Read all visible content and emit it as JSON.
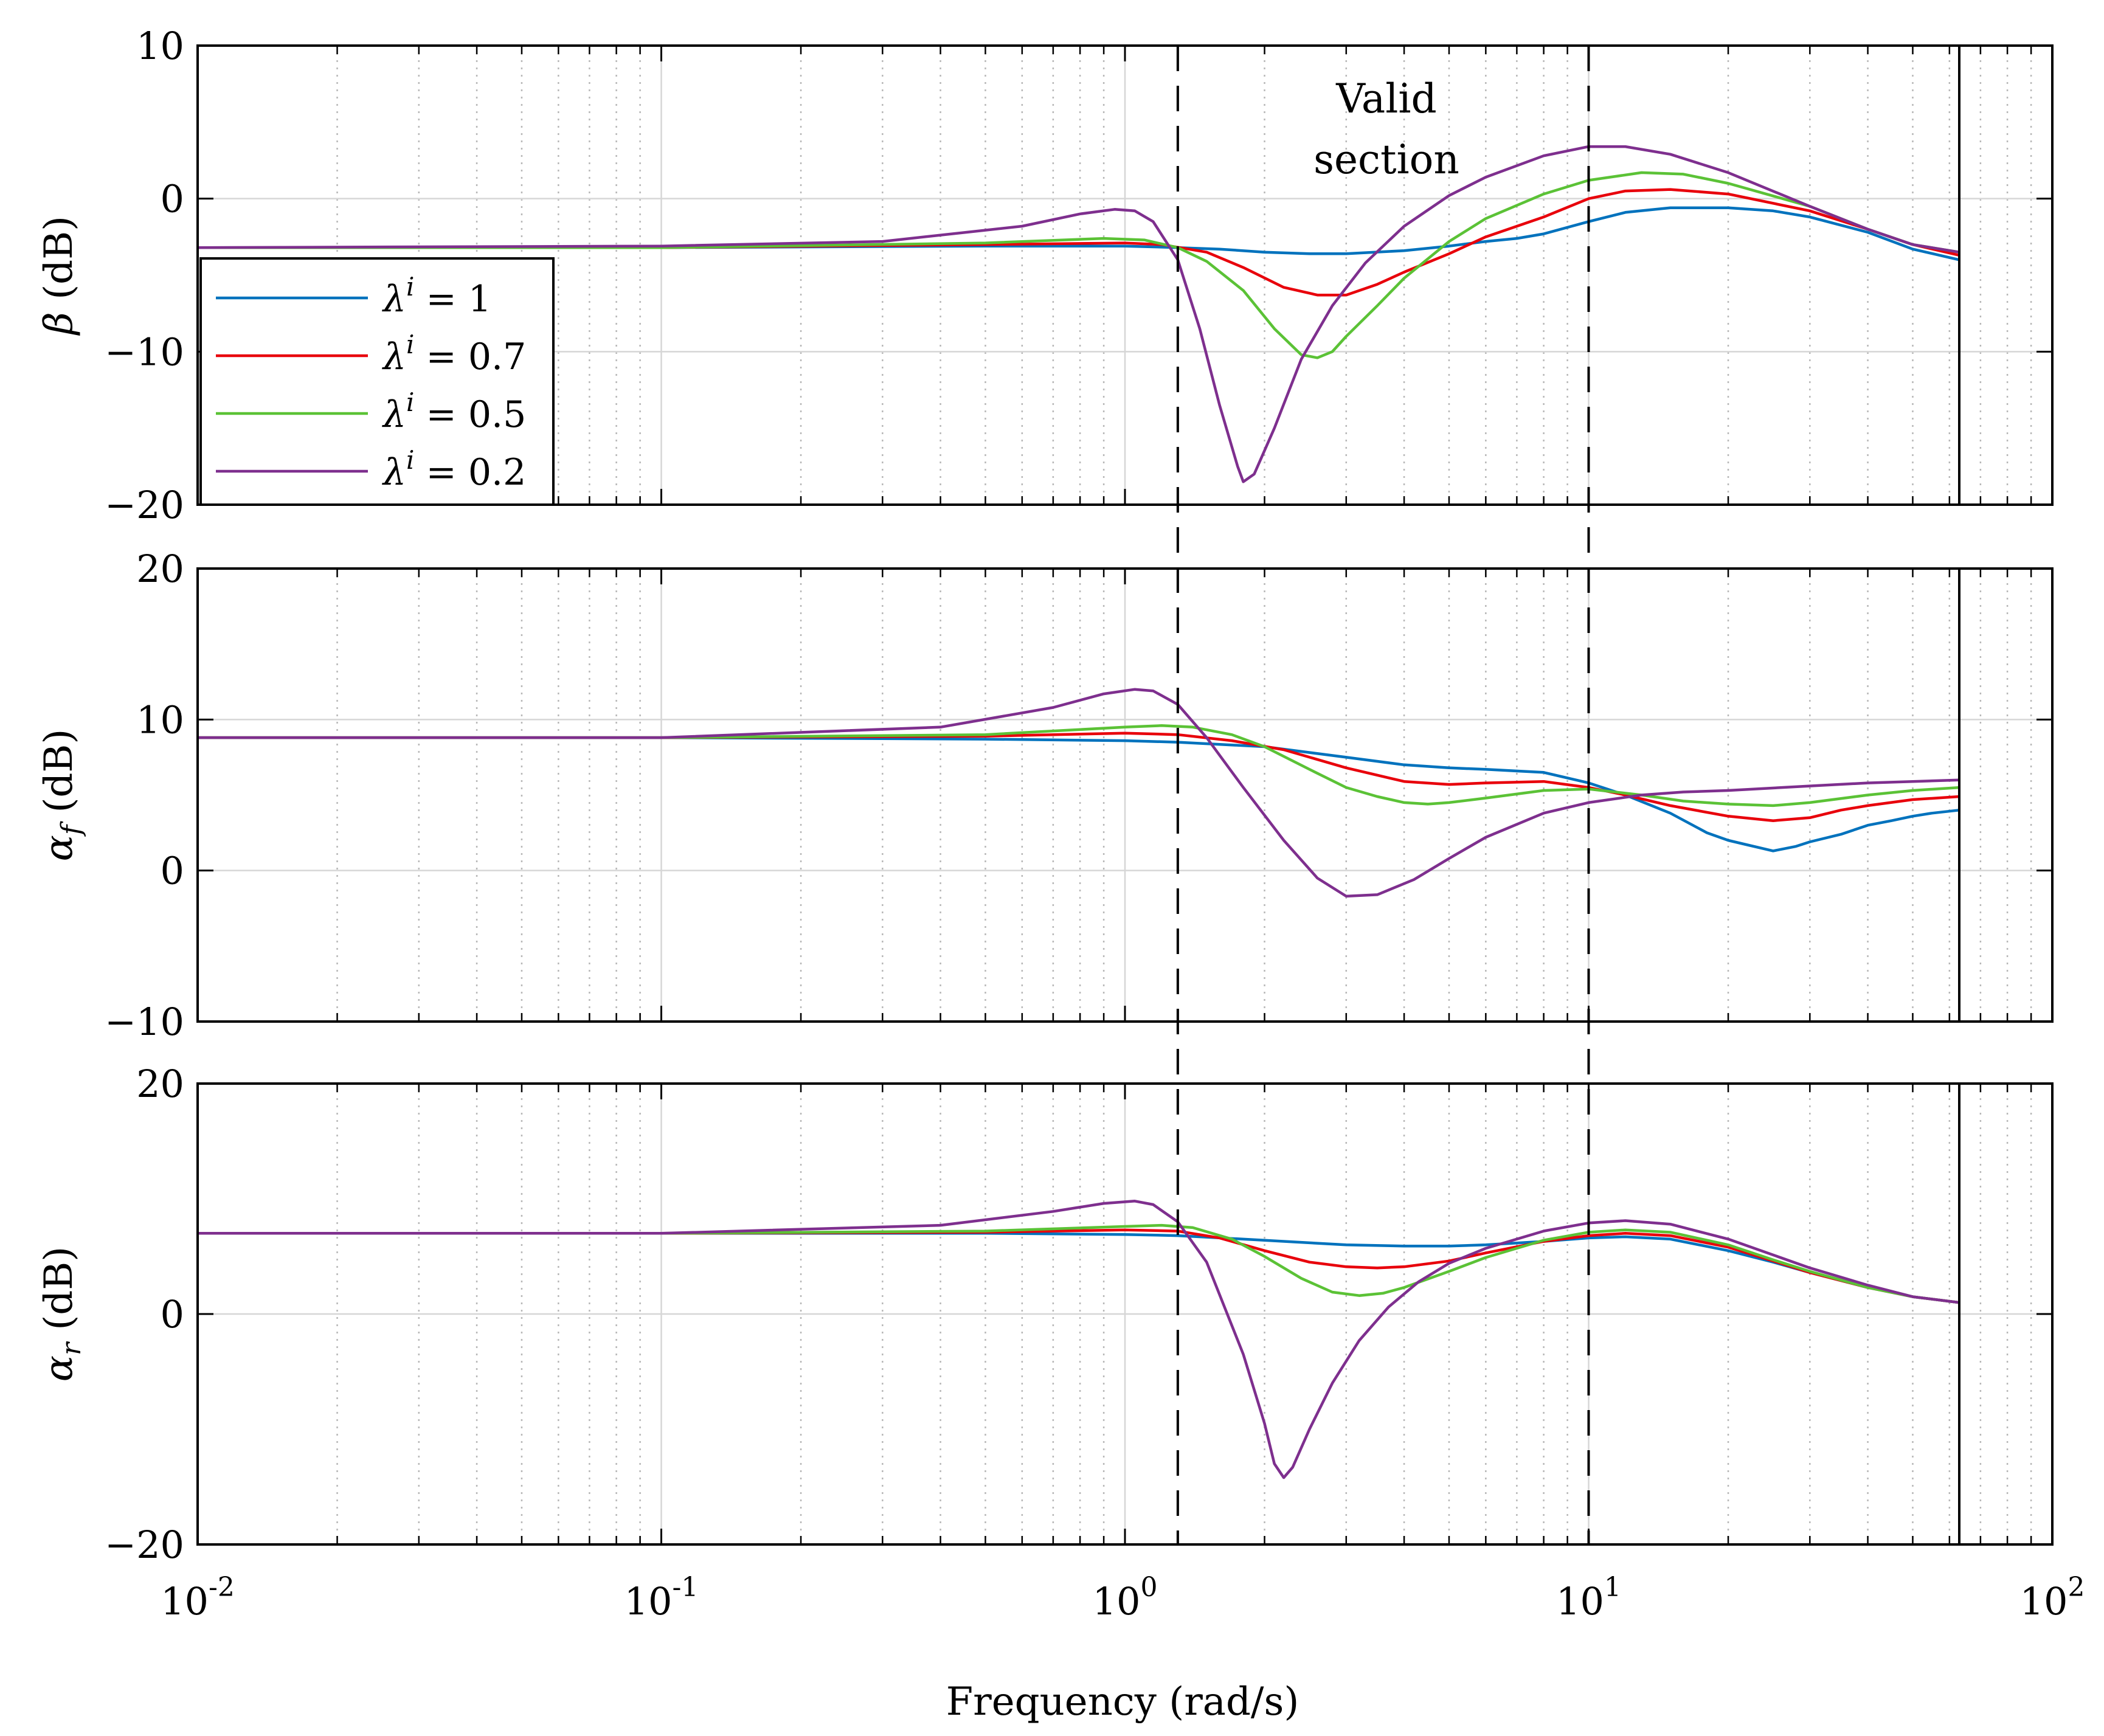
{
  "figure": {
    "xlabel": "Frequency (rad/s)",
    "annotation": [
      "Valid",
      "section"
    ],
    "x_tick_labels": [
      {
        "value": 0.01,
        "base": "10",
        "exp": "-2"
      },
      {
        "value": 0.1,
        "base": "10",
        "exp": "-1"
      },
      {
        "value": 1,
        "base": "10",
        "exp": "0"
      },
      {
        "value": 10,
        "base": "10",
        "exp": "1"
      },
      {
        "value": 100,
        "base": "10",
        "exp": "2"
      }
    ]
  },
  "chart_data": [
    {
      "type": "line",
      "xscale": "log",
      "xlim": [
        0.01,
        100
      ],
      "ylim": [
        -20,
        10
      ],
      "yticks": [
        -20,
        -10,
        0,
        10
      ],
      "ylabel_sym": "β",
      "ylabel_sub": "",
      "ylabel_unit": "(dB)",
      "grid": true,
      "legend_position": "left",
      "vlines_dashed": [
        1.3,
        10
      ],
      "vline_solid": 63,
      "series": [
        {
          "name": "λ^i = 1",
          "color": "#0072BD",
          "x": [
            0.01,
            0.1,
            0.5,
            1,
            1.3,
            1.6,
            2,
            2.5,
            3,
            4,
            5,
            6,
            7,
            8,
            10,
            12,
            15,
            20,
            25,
            30,
            40,
            50,
            63
          ],
          "y": [
            -3.2,
            -3.2,
            -3.1,
            -3.1,
            -3.2,
            -3.3,
            -3.5,
            -3.6,
            -3.6,
            -3.4,
            -3.1,
            -2.8,
            -2.6,
            -2.3,
            -1.5,
            -0.9,
            -0.6,
            -0.6,
            -0.8,
            -1.2,
            -2.2,
            -3.3,
            -4
          ]
        },
        {
          "name": "λ^i = 0.7",
          "color": "#E8000B",
          "x": [
            0.01,
            0.1,
            0.5,
            1,
            1.2,
            1.5,
            1.8,
            2.2,
            2.6,
            3,
            3.5,
            4,
            5,
            6,
            8,
            10,
            12,
            15,
            20,
            30,
            40,
            50,
            63
          ],
          "y": [
            -3.2,
            -3.2,
            -3.0,
            -2.9,
            -3.0,
            -3.5,
            -4.5,
            -5.8,
            -6.3,
            -6.3,
            -5.6,
            -4.8,
            -3.6,
            -2.5,
            -1.2,
            0,
            0.5,
            0.6,
            0.3,
            -0.8,
            -2,
            -3,
            -3.7
          ]
        },
        {
          "name": "λ^i = 0.5",
          "color": "#5BC236",
          "x": [
            0.01,
            0.1,
            0.5,
            0.9,
            1.1,
            1.3,
            1.5,
            1.8,
            2.1,
            2.4,
            2.6,
            2.8,
            3,
            3.5,
            4,
            5,
            6,
            8,
            10,
            13,
            16,
            20,
            30,
            40,
            50,
            63
          ],
          "y": [
            -3.2,
            -3.2,
            -2.9,
            -2.6,
            -2.7,
            -3.2,
            -4.1,
            -6,
            -8.5,
            -10.2,
            -10.4,
            -10,
            -9,
            -7,
            -5.2,
            -2.8,
            -1.3,
            0.3,
            1.2,
            1.7,
            1.6,
            1,
            -0.5,
            -2,
            -3,
            -3.5
          ]
        },
        {
          "name": "λ^i = 0.2",
          "color": "#7E2F8E",
          "x": [
            0.01,
            0.1,
            0.3,
            0.6,
            0.8,
            0.95,
            1.05,
            1.15,
            1.3,
            1.45,
            1.6,
            1.75,
            1.8,
            1.9,
            2.1,
            2.4,
            2.8,
            3.3,
            4,
            5,
            6,
            8,
            10,
            12,
            15,
            20,
            30,
            40,
            50,
            63
          ],
          "y": [
            -3.2,
            -3.1,
            -2.8,
            -1.8,
            -1.0,
            -0.7,
            -0.8,
            -1.5,
            -4,
            -8.5,
            -13.5,
            -17.5,
            -18.5,
            -18,
            -15,
            -10.5,
            -7,
            -4.2,
            -1.8,
            0.2,
            1.4,
            2.8,
            3.4,
            3.4,
            2.9,
            1.7,
            -0.5,
            -2,
            -3,
            -3.5
          ]
        }
      ]
    },
    {
      "type": "line",
      "xscale": "log",
      "xlim": [
        0.01,
        100
      ],
      "ylim": [
        -10,
        20
      ],
      "yticks": [
        -10,
        0,
        10,
        20
      ],
      "ylabel_sym": "α",
      "ylabel_sub": "f",
      "ylabel_unit": "(dB)",
      "grid": true,
      "vlines_dashed": [
        1.3,
        10
      ],
      "vline_solid": 63,
      "series": [
        {
          "name": "λ^i = 1",
          "color": "#0072BD",
          "x": [
            0.01,
            0.1,
            0.5,
            1,
            1.3,
            2,
            3,
            4,
            5,
            6,
            8,
            10,
            12,
            15,
            18,
            20,
            22,
            25,
            28,
            30,
            35,
            40,
            45,
            50,
            55,
            63
          ],
          "y": [
            8.8,
            8.8,
            8.7,
            8.6,
            8.5,
            8.2,
            7.5,
            7.0,
            6.8,
            6.7,
            6.5,
            5.8,
            5.0,
            3.8,
            2.5,
            2.0,
            1.7,
            1.3,
            1.6,
            1.9,
            2.4,
            3.0,
            3.3,
            3.6,
            3.8,
            4.0
          ]
        },
        {
          "name": "λ^i = 0.7",
          "color": "#E8000B",
          "x": [
            0.01,
            0.1,
            0.5,
            1,
            1.3,
            1.7,
            2.2,
            3,
            4,
            5,
            6,
            8,
            10,
            12,
            15,
            20,
            25,
            30,
            35,
            40,
            50,
            63
          ],
          "y": [
            8.8,
            8.8,
            8.9,
            9.1,
            9.0,
            8.6,
            8.0,
            6.8,
            5.9,
            5.7,
            5.8,
            5.9,
            5.5,
            5.0,
            4.3,
            3.6,
            3.3,
            3.5,
            4.0,
            4.3,
            4.7,
            4.9
          ]
        },
        {
          "name": "λ^i = 0.5",
          "color": "#5BC236",
          "x": [
            0.01,
            0.1,
            0.5,
            1,
            1.2,
            1.4,
            1.7,
            2,
            2.5,
            3,
            3.5,
            4,
            4.5,
            5,
            6,
            8,
            10,
            13,
            16,
            20,
            25,
            30,
            40,
            50,
            63
          ],
          "y": [
            8.8,
            8.8,
            9.0,
            9.5,
            9.6,
            9.5,
            9.0,
            8.2,
            6.7,
            5.5,
            4.9,
            4.5,
            4.4,
            4.5,
            4.8,
            5.3,
            5.4,
            5.0,
            4.6,
            4.4,
            4.3,
            4.5,
            5.0,
            5.3,
            5.5
          ]
        },
        {
          "name": "λ^i = 0.2",
          "color": "#7E2F8E",
          "x": [
            0.01,
            0.1,
            0.4,
            0.7,
            0.9,
            1.05,
            1.15,
            1.3,
            1.5,
            1.8,
            2.2,
            2.6,
            3.0,
            3.5,
            4.2,
            5,
            6,
            8,
            10,
            13,
            16,
            20,
            30,
            40,
            50,
            63
          ],
          "y": [
            8.8,
            8.8,
            9.5,
            10.8,
            11.7,
            12.0,
            11.9,
            11.0,
            8.8,
            5.5,
            2.0,
            -0.5,
            -1.7,
            -1.6,
            -0.6,
            0.8,
            2.2,
            3.8,
            4.5,
            5.0,
            5.2,
            5.3,
            5.6,
            5.8,
            5.9,
            6.0
          ]
        }
      ]
    },
    {
      "type": "line",
      "xscale": "log",
      "xlim": [
        0.01,
        100
      ],
      "ylim": [
        -20,
        20
      ],
      "yticks": [
        -20,
        0,
        20
      ],
      "ylabel_sym": "α",
      "ylabel_sub": "r",
      "ylabel_unit": "(dB)",
      "grid": true,
      "vlines_dashed": [
        1.3,
        10
      ],
      "vline_solid": 63,
      "series": [
        {
          "name": "λ^i = 1",
          "color": "#0072BD",
          "x": [
            0.01,
            0.1,
            0.5,
            1,
            1.3,
            2,
            3,
            4,
            5,
            6,
            8,
            10,
            12,
            15,
            20,
            25,
            30,
            40,
            50,
            63
          ],
          "y": [
            7.0,
            7.0,
            7.0,
            6.9,
            6.8,
            6.4,
            6.0,
            5.9,
            5.9,
            6.0,
            6.3,
            6.6,
            6.7,
            6.5,
            5.5,
            4.5,
            3.6,
            2.3,
            1.5,
            1.0
          ]
        },
        {
          "name": "λ^i = 0.7",
          "color": "#E8000B",
          "x": [
            0.01,
            0.1,
            0.5,
            1,
            1.3,
            1.6,
            2,
            2.5,
            3,
            3.5,
            4,
            5,
            6,
            8,
            10,
            12,
            15,
            20,
            25,
            30,
            40,
            50,
            63
          ],
          "y": [
            7.0,
            7.0,
            7.1,
            7.3,
            7.2,
            6.6,
            5.5,
            4.5,
            4.1,
            4.0,
            4.1,
            4.6,
            5.3,
            6.3,
            6.8,
            7.0,
            6.8,
            5.8,
            4.6,
            3.6,
            2.3,
            1.5,
            1.0
          ]
        },
        {
          "name": "λ^i = 0.5",
          "color": "#5BC236",
          "x": [
            0.01,
            0.1,
            0.5,
            1,
            1.2,
            1.4,
            1.7,
            2,
            2.4,
            2.8,
            3.2,
            3.6,
            4,
            5,
            6,
            8,
            10,
            12,
            15,
            20,
            25,
            30,
            40,
            50,
            63
          ],
          "y": [
            7.0,
            7.0,
            7.2,
            7.6,
            7.7,
            7.5,
            6.5,
            5.0,
            3.1,
            1.9,
            1.6,
            1.8,
            2.3,
            3.7,
            4.9,
            6.4,
            7.1,
            7.3,
            7.1,
            6.0,
            4.7,
            3.7,
            2.3,
            1.5,
            1.0
          ]
        },
        {
          "name": "λ^i = 0.2",
          "color": "#7E2F8E",
          "x": [
            0.01,
            0.1,
            0.4,
            0.7,
            0.9,
            1.05,
            1.15,
            1.3,
            1.5,
            1.8,
            2.0,
            2.1,
            2.2,
            2.3,
            2.5,
            2.8,
            3.2,
            3.7,
            4.3,
            5,
            6,
            8,
            10,
            12,
            15,
            20,
            30,
            40,
            50,
            63
          ],
          "y": [
            7.0,
            7.0,
            7.7,
            8.9,
            9.6,
            9.8,
            9.5,
            8.0,
            4.5,
            -3.5,
            -9.5,
            -13.0,
            -14.2,
            -13.3,
            -10.0,
            -6.0,
            -2.3,
            0.6,
            2.8,
            4.4,
            5.7,
            7.2,
            7.9,
            8.1,
            7.8,
            6.5,
            4.0,
            2.5,
            1.5,
            1.0
          ]
        }
      ]
    }
  ]
}
